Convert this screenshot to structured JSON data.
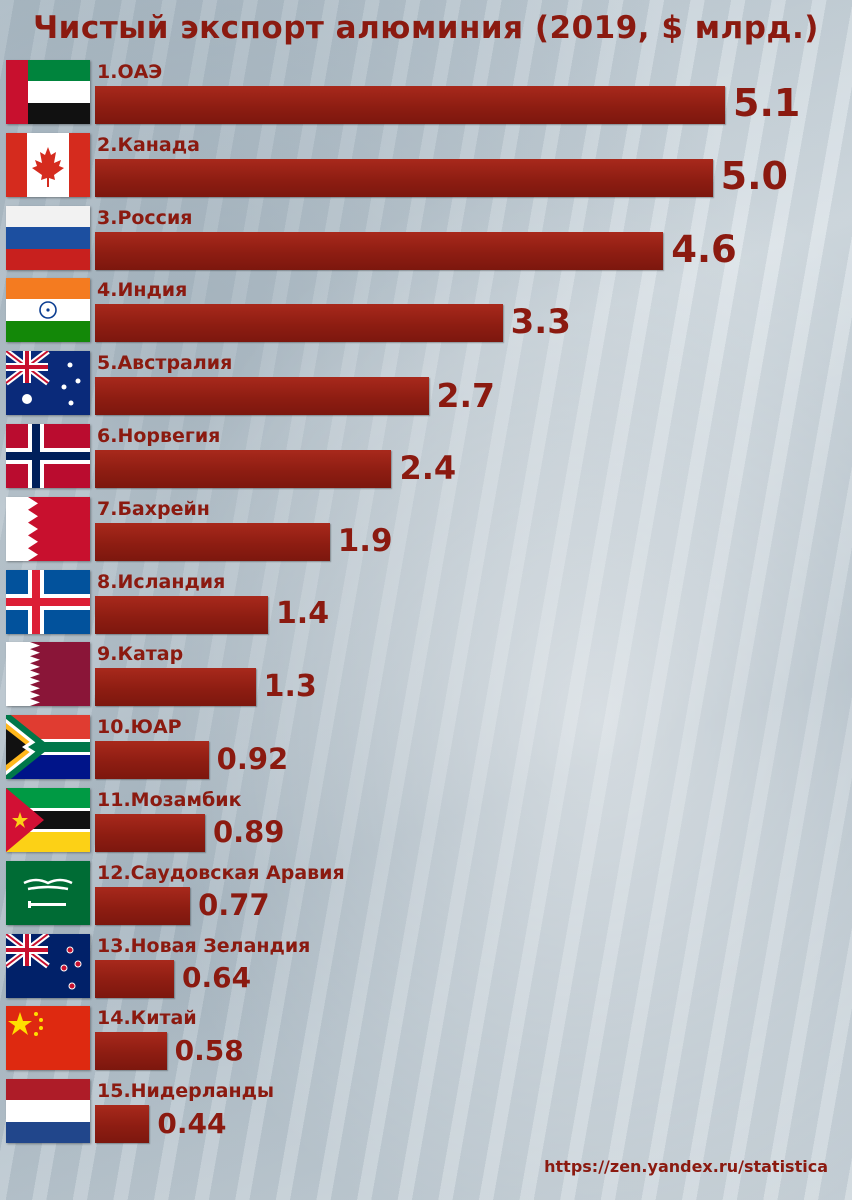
{
  "title": "Чистый экспорт алюминия (2019, $ млрд.)",
  "source": "https://zen.yandex.ru/statistica",
  "colors": {
    "bar": "#9a2216",
    "text": "#8b1a10"
  },
  "chart_data": {
    "type": "bar",
    "orientation": "horizontal",
    "title": "Чистый экспорт алюминия (2019, $ млрд.)",
    "categories": [
      "1.ОАЭ",
      "2.Канада",
      "3.Россия",
      "4.Индия",
      "5.Австралия",
      "6.Норвегия",
      "7.Бахрейн",
      "8.Исландия",
      "9.Катар",
      "10.ЮАР",
      "11.Мозамбик",
      "12.Саудовская Аравия",
      "13.Новая Зеландия",
      "14.Китай",
      "15.Нидерланды"
    ],
    "flags": [
      "uae-flag-icon",
      "canada-flag-icon",
      "russia-flag-icon",
      "india-flag-icon",
      "australia-flag-icon",
      "norway-flag-icon",
      "bahrain-flag-icon",
      "iceland-flag-icon",
      "qatar-flag-icon",
      "south-africa-flag-icon",
      "mozambique-flag-icon",
      "saudi-arabia-flag-icon",
      "new-zealand-flag-icon",
      "china-flag-icon",
      "netherlands-flag-icon"
    ],
    "values": [
      5.1,
      5.0,
      4.6,
      3.3,
      2.7,
      2.4,
      1.9,
      1.4,
      1.3,
      0.92,
      0.89,
      0.77,
      0.64,
      0.58,
      0.44
    ],
    "value_labels": [
      "5.1",
      "5.0",
      "4.6",
      "3.3",
      "2.7",
      "2.4",
      "1.9",
      "1.4",
      "1.3",
      "0.92",
      "0.89",
      "0.77",
      "0.64",
      "0.58",
      "0.44"
    ],
    "xlim": [
      0,
      5.1
    ],
    "grid": false,
    "legend": "none"
  }
}
